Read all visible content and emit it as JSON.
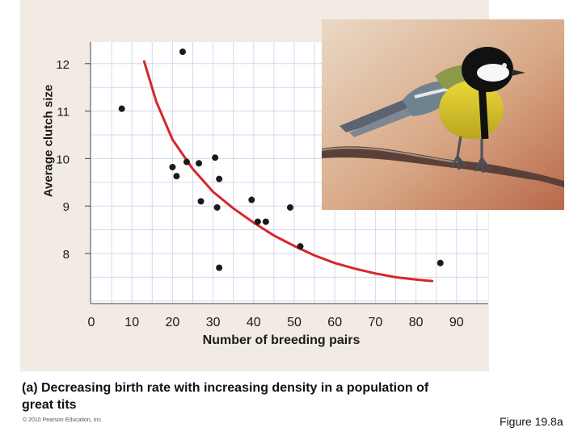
{
  "chart_data": {
    "type": "scatter",
    "xlabel": "Number of breeding pairs",
    "ylabel": "Average clutch size",
    "xlim": [
      0,
      90
    ],
    "ylim": [
      7.0,
      12.5
    ],
    "xticks": [
      "0",
      "10",
      "20",
      "30",
      "40",
      "50",
      "60",
      "70",
      "80",
      "90"
    ],
    "yticks": [
      "8",
      "9",
      "10",
      "11",
      "12"
    ],
    "grid": true,
    "points": [
      {
        "x": 7.5,
        "y": 11.05
      },
      {
        "x": 22.5,
        "y": 12.25
      },
      {
        "x": 20,
        "y": 9.82
      },
      {
        "x": 21,
        "y": 9.63
      },
      {
        "x": 23.5,
        "y": 9.93
      },
      {
        "x": 26.5,
        "y": 9.9
      },
      {
        "x": 27,
        "y": 9.1
      },
      {
        "x": 30.5,
        "y": 10.02
      },
      {
        "x": 31,
        "y": 8.97
      },
      {
        "x": 31.5,
        "y": 9.57
      },
      {
        "x": 31.5,
        "y": 7.7
      },
      {
        "x": 39.5,
        "y": 9.13
      },
      {
        "x": 41,
        "y": 8.67
      },
      {
        "x": 43,
        "y": 8.67
      },
      {
        "x": 49,
        "y": 8.97
      },
      {
        "x": 51.5,
        "y": 8.15
      },
      {
        "x": 86,
        "y": 7.8
      }
    ],
    "curve": [
      {
        "x": 13,
        "y": 12.05
      },
      {
        "x": 16,
        "y": 11.2
      },
      {
        "x": 20,
        "y": 10.4
      },
      {
        "x": 25,
        "y": 9.78
      },
      {
        "x": 30,
        "y": 9.3
      },
      {
        "x": 35,
        "y": 8.95
      },
      {
        "x": 40,
        "y": 8.65
      },
      {
        "x": 45,
        "y": 8.38
      },
      {
        "x": 50,
        "y": 8.16
      },
      {
        "x": 55,
        "y": 7.96
      },
      {
        "x": 60,
        "y": 7.8
      },
      {
        "x": 65,
        "y": 7.68
      },
      {
        "x": 70,
        "y": 7.58
      },
      {
        "x": 75,
        "y": 7.5
      },
      {
        "x": 80,
        "y": 7.45
      },
      {
        "x": 84,
        "y": 7.42
      }
    ],
    "point_color": "#1a1a1a",
    "curve_color": "#d6262b"
  },
  "caption": "(a) Decreasing birth rate with increasing density in a population of great tits",
  "copyright": "© 2010 Pearson Education, Inc.",
  "figure_ref": "Figure 19.8a",
  "photo": {
    "icon": "great-tit-bird-icon",
    "subject": "great tit perched on a branch"
  },
  "colors": {
    "panel": "#f2ebe3",
    "grid": "#dad6f0",
    "plot_bg": "#ffffff"
  }
}
